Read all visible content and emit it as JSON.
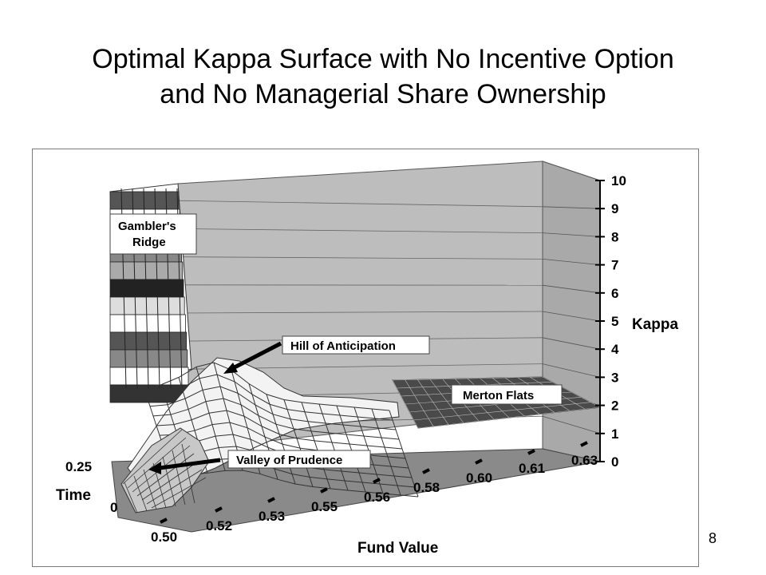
{
  "slide": {
    "title_line1": "Optimal Kappa Surface with No Incentive Option",
    "title_line2": "and No Managerial Share Ownership",
    "page_number": "8"
  },
  "chart_data": {
    "type": "surface",
    "title": "",
    "xlabel": "Fund Value",
    "ylabel": "Time",
    "zlabel": "Kappa",
    "x_ticks": [
      "0.50",
      "0.52",
      "0.53",
      "0.55",
      "0.56",
      "0.58",
      "0.60",
      "0.61",
      "0.63"
    ],
    "y_ticks": [
      "0.25",
      "0"
    ],
    "z_ticks": [
      "0",
      "1",
      "2",
      "3",
      "4",
      "5",
      "6",
      "7",
      "8",
      "9",
      "10"
    ],
    "zlim": [
      0,
      10
    ],
    "annotations": [
      "Gambler's Ridge",
      "Hill of Anticipation",
      "Merton Flats",
      "Valley of Prudence"
    ],
    "grid": true
  }
}
